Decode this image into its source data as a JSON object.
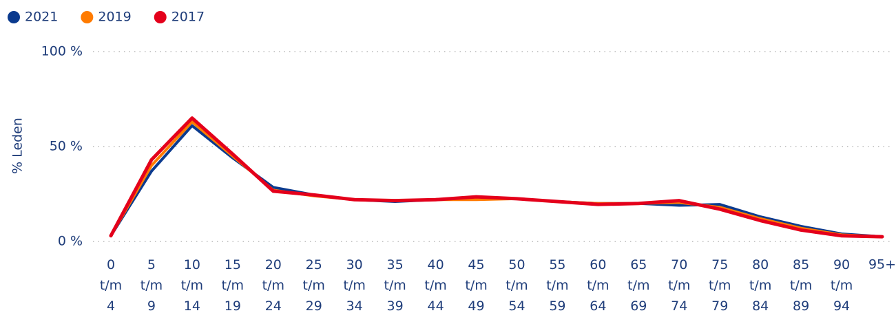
{
  "chart_data": {
    "type": "line",
    "y_label": "% Leden",
    "categories": [
      "0 t/m 4",
      "5 t/m 9",
      "10 t/m 14",
      "15 t/m 19",
      "20 t/m 24",
      "25 t/m 29",
      "30 t/m 34",
      "35 t/m 39",
      "40 t/m 44",
      "45 t/m 49",
      "50 t/m 54",
      "55 t/m 59",
      "60 t/m 64",
      "65 t/m 69",
      "70 t/m 74",
      "75 t/m 79",
      "80 t/m 84",
      "85 t/m 89",
      "90 t/m 94",
      "95+"
    ],
    "series": [
      {
        "name": "2021",
        "color": "#0b3a8e",
        "values": [
          3,
          37,
          61,
          44,
          28.5,
          24.5,
          22,
          21,
          22,
          22.5,
          22.5,
          21,
          20,
          20,
          19,
          19.5,
          13,
          8,
          4,
          2.5
        ]
      },
      {
        "name": "2019",
        "color": "#ff7b00",
        "values": [
          3,
          40,
          63,
          45,
          27,
          24,
          22,
          21.5,
          22,
          22,
          22.5,
          21,
          20,
          20,
          20.5,
          18,
          12,
          7,
          3.5,
          2.5
        ]
      },
      {
        "name": "2017",
        "color": "#e4001b",
        "values": [
          3,
          43,
          65,
          46,
          26.5,
          24.5,
          22,
          21.5,
          22,
          23.5,
          22.5,
          21,
          19.5,
          20,
          21.5,
          17,
          11,
          6,
          3,
          2.5
        ]
      }
    ],
    "ylim": [
      0,
      100
    ],
    "yticks": [
      {
        "value": 0,
        "label": "0 %"
      },
      {
        "value": 50,
        "label": "50 %"
      },
      {
        "value": 100,
        "label": "100 %"
      }
    ],
    "grid": true,
    "legend": "top-left"
  }
}
